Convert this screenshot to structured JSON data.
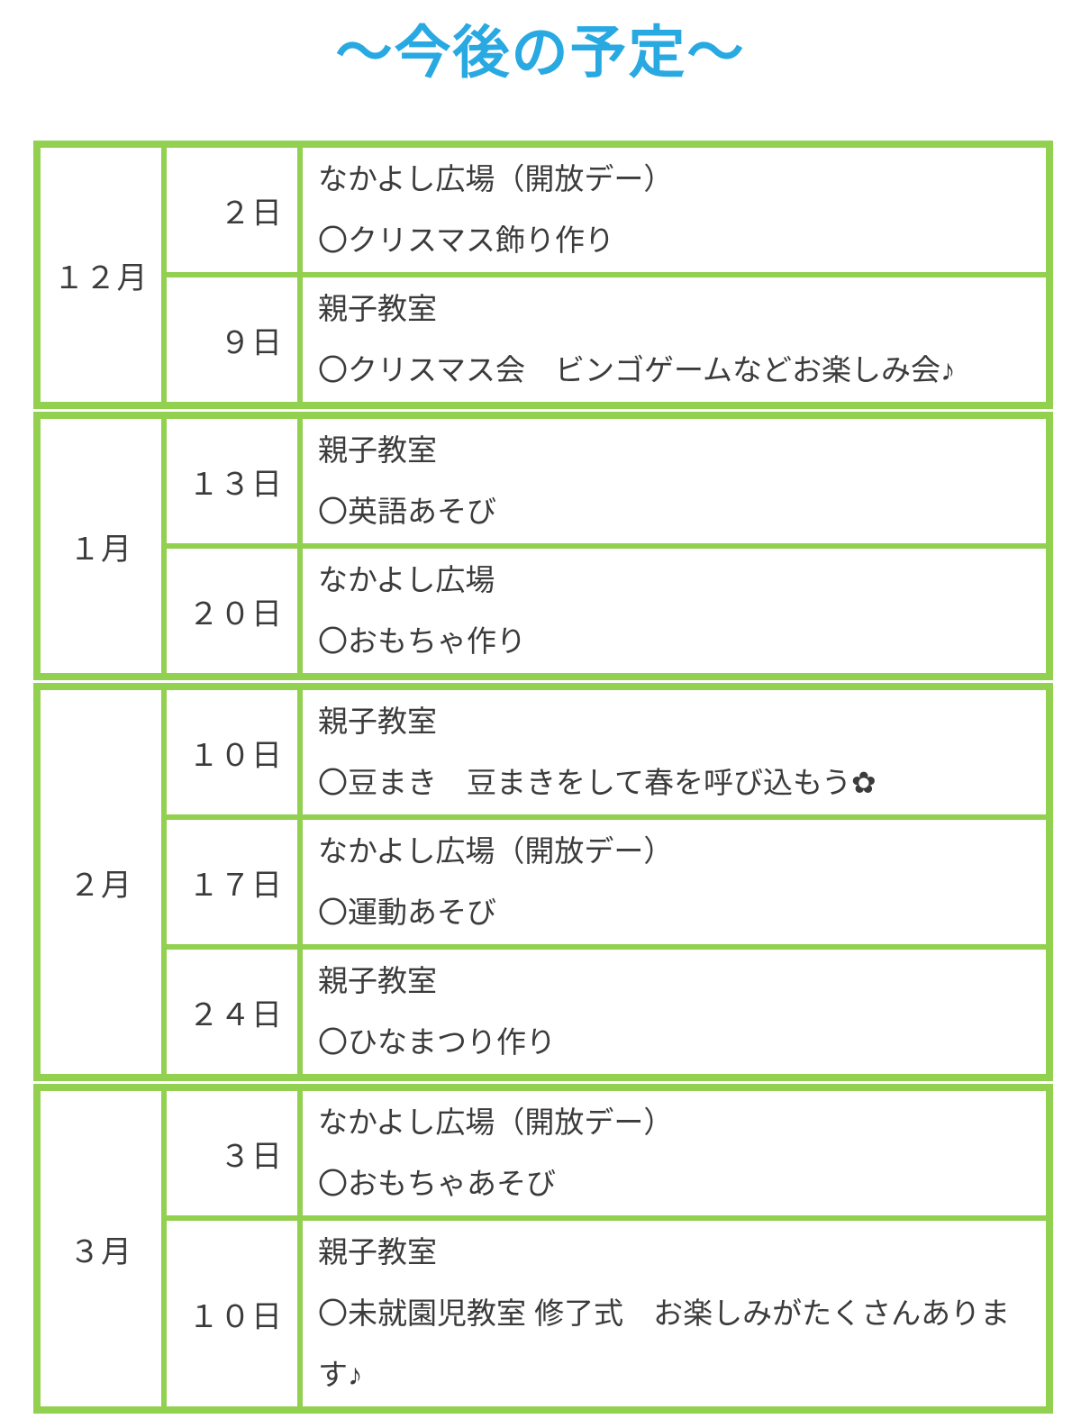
{
  "title": "〜今後の予定〜",
  "colors": {
    "accent_blue": "#29a9e2",
    "table_green": "#92d050",
    "text_color": "#3b3b3b"
  },
  "schedule": [
    {
      "month": "１２月",
      "rows": [
        {
          "day": "２日",
          "lines": [
            "なかよし広場（開放デー）",
            "〇クリスマス飾り作り"
          ]
        },
        {
          "day": "９日",
          "lines": [
            "親子教室",
            "〇クリスマス会　ビンゴゲームなどお楽しみ会♪"
          ]
        }
      ]
    },
    {
      "month": "１月",
      "rows": [
        {
          "day": "１３日",
          "lines": [
            "親子教室",
            "〇英語あそび"
          ]
        },
        {
          "day": "２０日",
          "lines": [
            "なかよし広場",
            "〇おもちゃ作り"
          ]
        }
      ]
    },
    {
      "month": "２月",
      "rows": [
        {
          "day": "１０日",
          "lines": [
            "親子教室",
            "〇豆まき　豆まきをして春を呼び込もう✿"
          ]
        },
        {
          "day": "１７日",
          "lines": [
            "なかよし広場（開放デー）",
            "〇運動あそび"
          ]
        },
        {
          "day": "２４日",
          "lines": [
            "親子教室",
            "〇ひなまつり作り"
          ]
        }
      ]
    },
    {
      "month": "３月",
      "rows": [
        {
          "day": "３日",
          "lines": [
            "なかよし広場（開放デー）",
            "〇おもちゃあそび"
          ]
        },
        {
          "day": "１０日",
          "lines": [
            "親子教室",
            "〇未就園児教室 修了式　お楽しみがたくさんあります♪"
          ]
        }
      ]
    }
  ]
}
